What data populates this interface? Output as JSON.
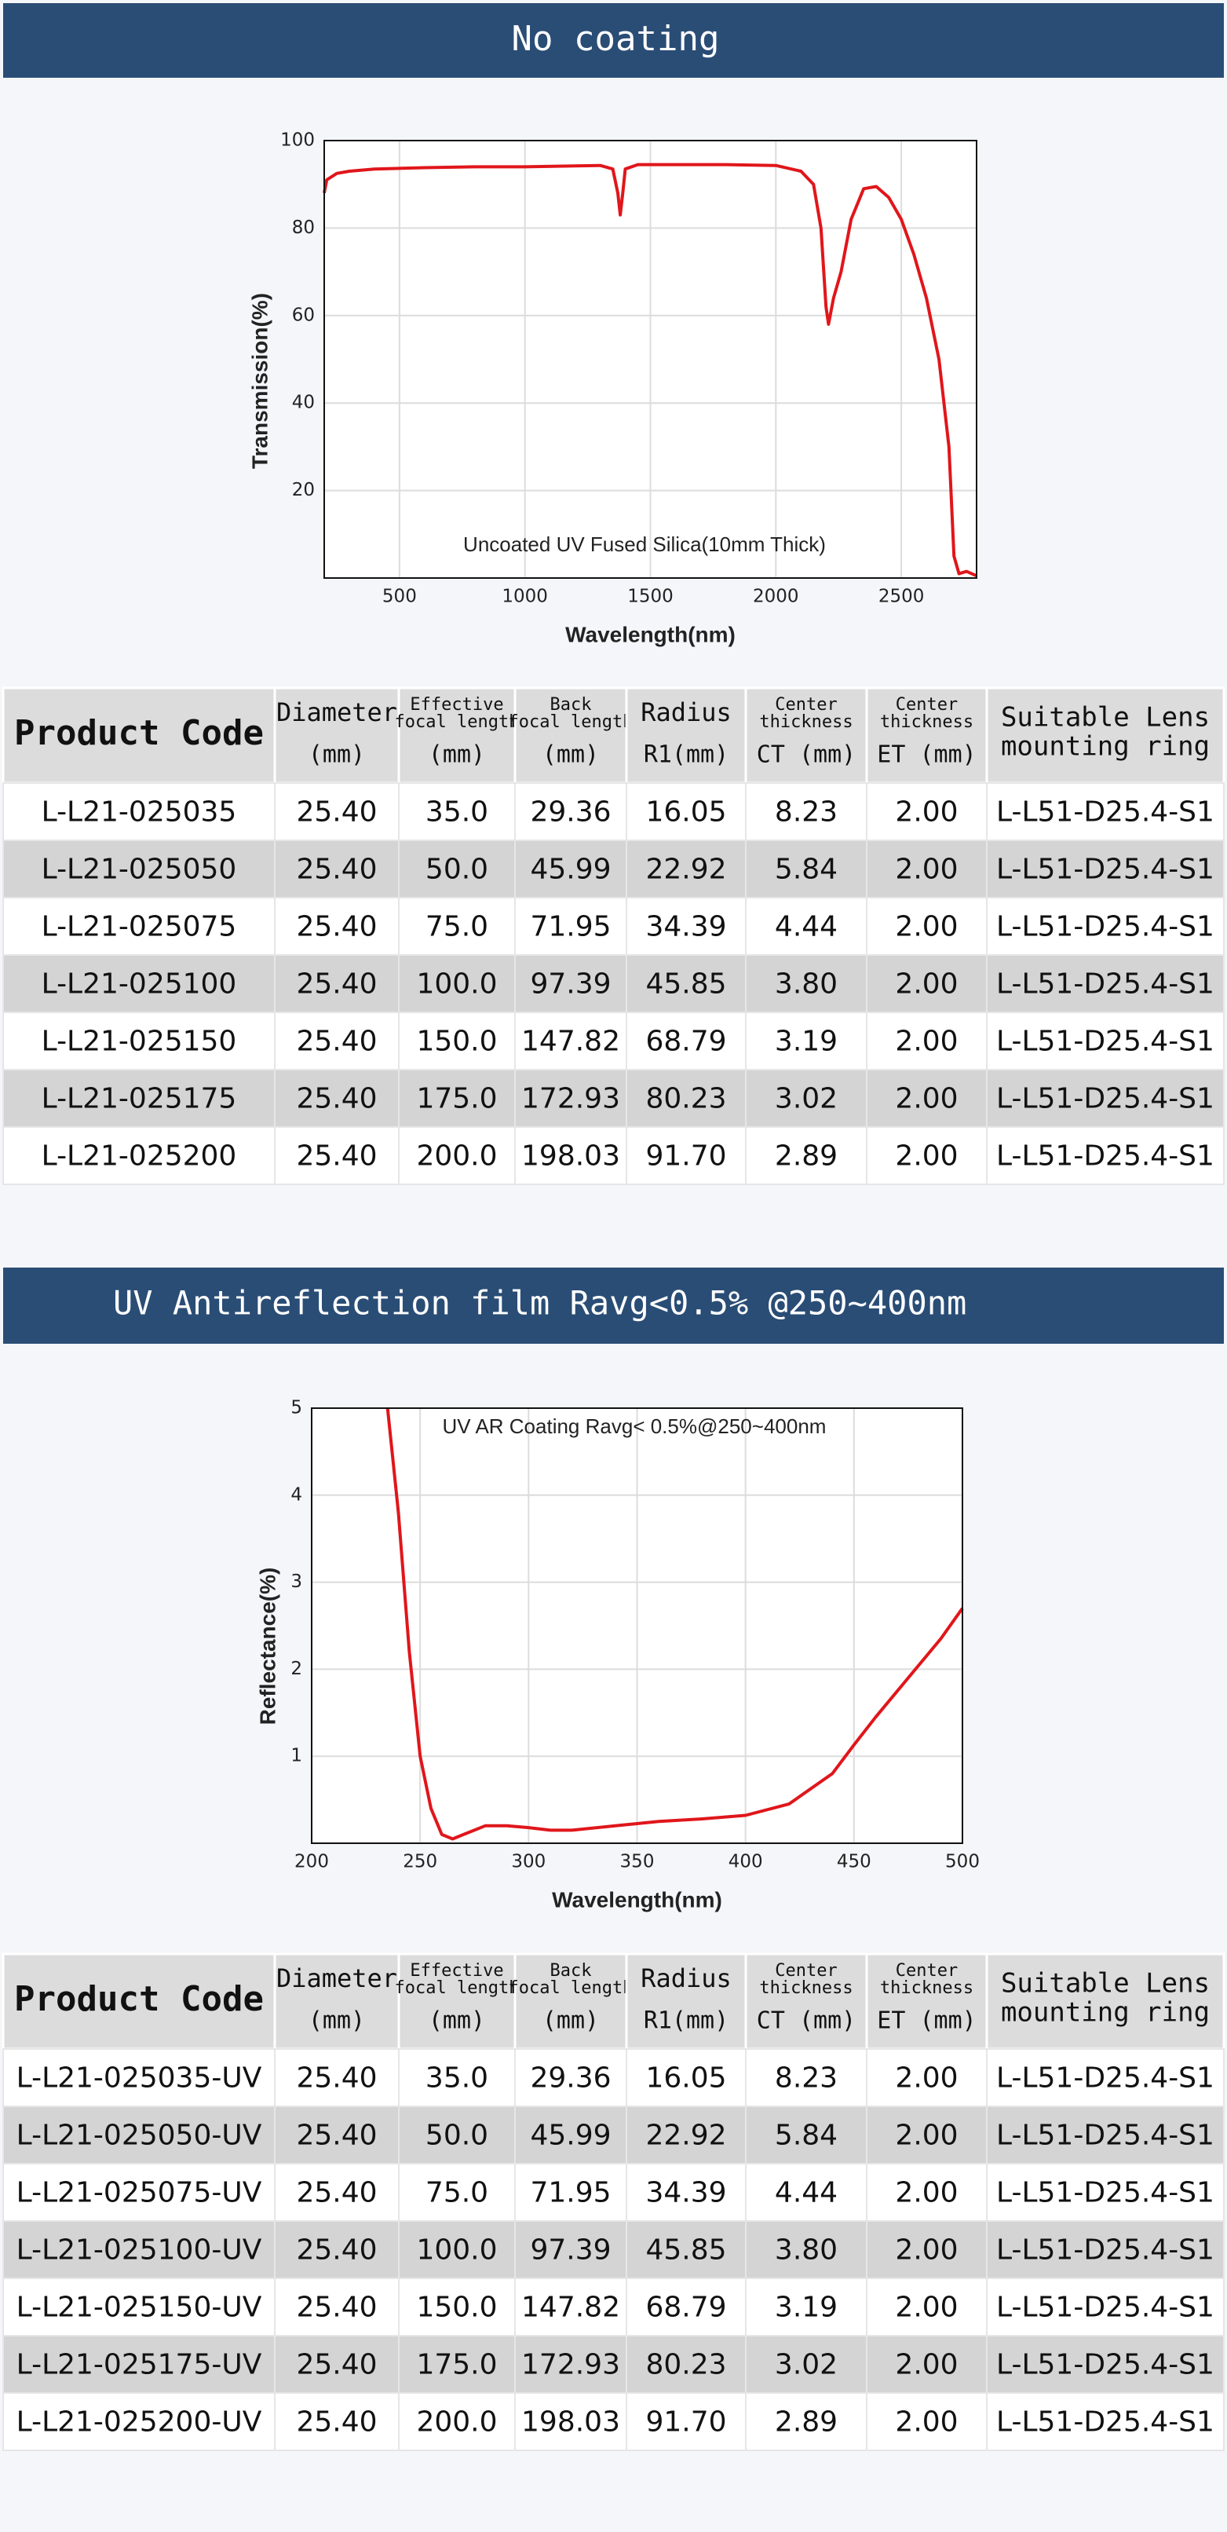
{
  "banners": [
    "No coating",
    "UV Antireflection film Ravg<0.5% @250~400nm"
  ],
  "chart_data": [
    {
      "type": "line",
      "annotation": "Uncoated UV Fused Silica(10mm Thick)",
      "x_label": "Wavelength(nm)",
      "y_label": "Transmission(%)",
      "x": [
        200,
        210,
        250,
        300,
        400,
        600,
        800,
        1000,
        1200,
        1300,
        1350,
        1370,
        1380,
        1390,
        1400,
        1450,
        1600,
        1800,
        2000,
        2100,
        2150,
        2180,
        2200,
        2210,
        2230,
        2260,
        2300,
        2350,
        2400,
        2450,
        2500,
        2550,
        2600,
        2650,
        2690,
        2710,
        2730,
        2760,
        2800
      ],
      "values": [
        88,
        91,
        92.5,
        93,
        93.5,
        93.8,
        94,
        94,
        94.2,
        94.3,
        93.5,
        88,
        83,
        88,
        93.5,
        94.5,
        94.5,
        94.5,
        94.3,
        93,
        90,
        80,
        62,
        58,
        64,
        70,
        82,
        89,
        89.5,
        87,
        82,
        74,
        64,
        50,
        30,
        5,
        1,
        1.5,
        0.5
      ],
      "color": "#e0161b",
      "xlim": [
        200,
        2800
      ],
      "ylim": [
        0,
        100
      ],
      "xticks": [
        500,
        1000,
        1500,
        2000,
        2500
      ],
      "yticks": [
        20,
        40,
        60,
        80,
        100
      ],
      "grid": true
    },
    {
      "type": "line",
      "annotation": "UV AR Coating Ravg< 0.5%@250~400nm",
      "x_label": "Wavelength(nm)",
      "y_label": "Reflectance(%)",
      "x": [
        235,
        240,
        245,
        250,
        255,
        260,
        265,
        270,
        280,
        290,
        300,
        310,
        320,
        340,
        360,
        380,
        400,
        420,
        440,
        450,
        460,
        475,
        490,
        500
      ],
      "values": [
        5,
        3.8,
        2.2,
        1.0,
        0.4,
        0.1,
        0.05,
        0.1,
        0.2,
        0.2,
        0.18,
        0.15,
        0.15,
        0.2,
        0.25,
        0.28,
        0.32,
        0.45,
        0.8,
        1.13,
        1.45,
        1.9,
        2.35,
        2.7
      ],
      "color": "#e0161b",
      "xlim": [
        200,
        500
      ],
      "ylim": [
        0,
        5
      ],
      "xticks": [
        200,
        250,
        300,
        350,
        400,
        450,
        500
      ],
      "yticks": [
        1,
        2,
        3,
        4,
        5
      ],
      "grid": true
    }
  ],
  "tables": [
    {
      "header": [
        [
          "Product Code"
        ],
        [
          "Diameter",
          "(mm)"
        ],
        [
          "Effective",
          "focal length",
          "(mm)"
        ],
        [
          "Back",
          "focal length",
          "(mm)"
        ],
        [
          "Radius",
          "R1(mm)"
        ],
        [
          "Center",
          "thickness",
          "CT (mm)"
        ],
        [
          "Center",
          "thickness",
          "ET (mm)"
        ],
        [
          "Suitable Lens",
          "mounting ring"
        ]
      ],
      "rows": [
        [
          "L-L21-025035",
          "25.40",
          "35.0",
          "29.36",
          "16.05",
          "8.23",
          "2.00",
          "L-L51-D25.4-S1"
        ],
        [
          "L-L21-025050",
          "25.40",
          "50.0",
          "45.99",
          "22.92",
          "5.84",
          "2.00",
          "L-L51-D25.4-S1"
        ],
        [
          "L-L21-025075",
          "25.40",
          "75.0",
          "71.95",
          "34.39",
          "4.44",
          "2.00",
          "L-L51-D25.4-S1"
        ],
        [
          "L-L21-025100",
          "25.40",
          "100.0",
          "97.39",
          "45.85",
          "3.80",
          "2.00",
          "L-L51-D25.4-S1"
        ],
        [
          "L-L21-025150",
          "25.40",
          "150.0",
          "147.82",
          "68.79",
          "3.19",
          "2.00",
          "L-L51-D25.4-S1"
        ],
        [
          "L-L21-025175",
          "25.40",
          "175.0",
          "172.93",
          "80.23",
          "3.02",
          "2.00",
          "L-L51-D25.4-S1"
        ],
        [
          "L-L21-025200",
          "25.40",
          "200.0",
          "198.03",
          "91.70",
          "2.89",
          "2.00",
          "L-L51-D25.4-S1"
        ]
      ]
    },
    {
      "header": [
        [
          "Product Code"
        ],
        [
          "Diameter",
          "(mm)"
        ],
        [
          "Effective",
          "focal length",
          "(mm)"
        ],
        [
          "Back",
          "focal length",
          "(mm)"
        ],
        [
          "Radius",
          "R1(mm)"
        ],
        [
          "Center",
          "thickness",
          "CT (mm)"
        ],
        [
          "Center",
          "thickness",
          "ET (mm)"
        ],
        [
          "Suitable Lens",
          "mounting ring"
        ]
      ],
      "rows": [
        [
          "L-L21-025035-UV",
          "25.40",
          "35.0",
          "29.36",
          "16.05",
          "8.23",
          "2.00",
          "L-L51-D25.4-S1"
        ],
        [
          "L-L21-025050-UV",
          "25.40",
          "50.0",
          "45.99",
          "22.92",
          "5.84",
          "2.00",
          "L-L51-D25.4-S1"
        ],
        [
          "L-L21-025075-UV",
          "25.40",
          "75.0",
          "71.95",
          "34.39",
          "4.44",
          "2.00",
          "L-L51-D25.4-S1"
        ],
        [
          "L-L21-025100-UV",
          "25.40",
          "100.0",
          "97.39",
          "45.85",
          "3.80",
          "2.00",
          "L-L51-D25.4-S1"
        ],
        [
          "L-L21-025150-UV",
          "25.40",
          "150.0",
          "147.82",
          "68.79",
          "3.19",
          "2.00",
          "L-L51-D25.4-S1"
        ],
        [
          "L-L21-025175-UV",
          "25.40",
          "175.0",
          "172.93",
          "80.23",
          "3.02",
          "2.00",
          "L-L51-D25.4-S1"
        ],
        [
          "L-L21-025200-UV",
          "25.40",
          "200.0",
          "198.03",
          "91.70",
          "2.89",
          "2.00",
          "L-L51-D25.4-S1"
        ]
      ]
    }
  ]
}
